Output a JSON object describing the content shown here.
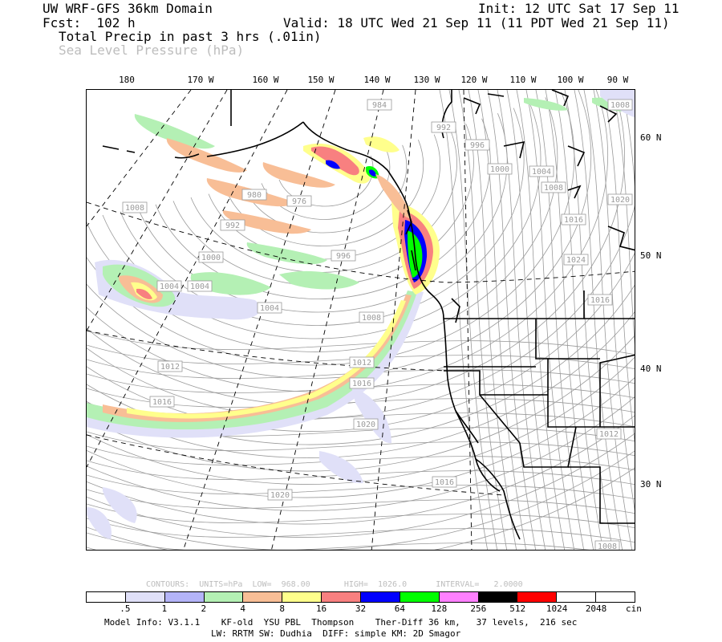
{
  "header": {
    "title": "UW WRF-GFS 36km Domain",
    "init": "Init: 12 UTC Sat 17 Sep 11",
    "fcst": "Fcst:  102 h",
    "valid": "Valid: 18 UTC Wed 21 Sep 11 (11 PDT Wed 21 Sep 11)",
    "field1": "Total Precip in past 3 hrs (.01in)",
    "field2": "Sea Level Pressure (hPa)"
  },
  "axes": {
    "lon_labels": [
      "180",
      "170 W",
      "160 W",
      "150 W",
      "140 W",
      "130 W",
      "120 W",
      "110 W",
      "100 W",
      "90 W"
    ],
    "lat_labels": [
      "60 N",
      "50 N",
      "40 N",
      "30 N"
    ]
  },
  "map": {
    "pressure_labels": [
      "984",
      "992",
      "996",
      "1000",
      "1004",
      "1008",
      "1020",
      "1016",
      "980",
      "976",
      "992",
      "996",
      "1008",
      "1000",
      "1004",
      "1004",
      "1004",
      "1008",
      "1012",
      "1016",
      "1012",
      "1016",
      "1020",
      "1016",
      "1020",
      "1024",
      "1016",
      "1012",
      "1008",
      "1008"
    ]
  },
  "contours_info": "CONTOURS:  UNITS=hPa  LOW=  968.00       HIGH=  1026.0      INTERVAL=   2.0000",
  "legend": {
    "colors": [
      "#ffffff",
      "#e0e0f8",
      "#b4b4f8",
      "#b4f0b4",
      "#f8be96",
      "#ffff8c",
      "#f88080",
      "#0000ff",
      "#00ff00",
      "#ff80ff",
      "#000000",
      "#ff0000",
      "#ffffff",
      "#ffffff"
    ],
    "ticks": [
      ".5",
      "1",
      "2",
      "4",
      "8",
      "16",
      "32",
      "64",
      "128",
      "256",
      "512",
      "1024",
      "2048"
    ],
    "units": "cin"
  },
  "footer": {
    "line1": "Model Info: V3.1.1    KF-old  YSU PBL  Thompson    Ther-Diff 36 km,   37 levels,  216 sec",
    "line2": "LW: RRTM SW: Dudhia  DIFF: simple KM: 2D Smagor"
  }
}
